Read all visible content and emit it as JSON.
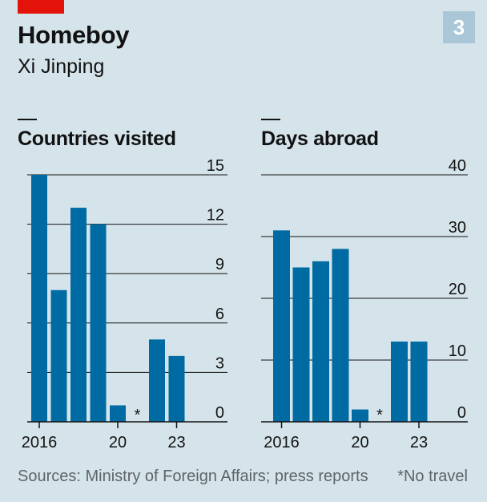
{
  "header": {
    "title": "Homeboy",
    "subtitle": "Xi Jinping",
    "chart_number": "3"
  },
  "footer": {
    "sources": "Sources: Ministry of Foreign Affairs; press reports",
    "note": "*No travel"
  },
  "colors": {
    "background": "#d5e4eb",
    "bar": "#006ba2",
    "brand_red": "#e3120b",
    "badge": "#a9c7d6"
  },
  "chart_data": [
    {
      "type": "bar",
      "title": "Countries visited",
      "categories": [
        2016,
        2017,
        2018,
        2019,
        2020,
        2021,
        2022,
        2023
      ],
      "values": [
        15,
        8,
        13,
        12,
        1,
        0,
        5,
        4
      ],
      "no_travel_years": [
        2021
      ],
      "no_travel_marker": "*",
      "x_tick_labels": [
        "2016",
        "20",
        "23"
      ],
      "x_tick_years": [
        2016,
        2020,
        2023
      ],
      "y_ticks": [
        0,
        3,
        6,
        9,
        12,
        15
      ],
      "ylim": [
        0,
        15
      ],
      "grid": true,
      "y_axis_side": "right"
    },
    {
      "type": "bar",
      "title": "Days abroad",
      "categories": [
        2016,
        2017,
        2018,
        2019,
        2020,
        2021,
        2022,
        2023
      ],
      "values": [
        31,
        25,
        26,
        28,
        2,
        0,
        13,
        13
      ],
      "no_travel_years": [
        2021
      ],
      "no_travel_marker": "*",
      "x_tick_labels": [
        "2016",
        "20",
        "23"
      ],
      "x_tick_years": [
        2016,
        2020,
        2023
      ],
      "y_ticks": [
        0,
        10,
        20,
        30,
        40
      ],
      "ylim": [
        0,
        40
      ],
      "grid": true,
      "y_axis_side": "right"
    }
  ]
}
